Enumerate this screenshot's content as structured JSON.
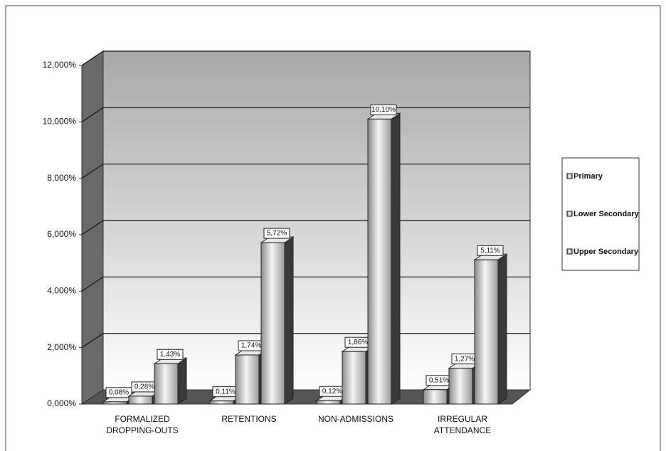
{
  "chart_data": {
    "type": "bar3d",
    "categories": [
      "FORMALIZED DROPPING-OUTS",
      "RETENTIONS",
      "NON-ADMISSIONS",
      "IRREGULAR ATTENDANCE"
    ],
    "series": [
      {
        "name": "Primary",
        "values": [
          0.08,
          0.11,
          0.12,
          0.51
        ],
        "value_labels": [
          "0,08%",
          "0,11%",
          "0,12%",
          "0,51%"
        ]
      },
      {
        "name": "Lower Secondary",
        "values": [
          0.28,
          1.74,
          1.86,
          1.27
        ],
        "value_labels": [
          "0,28%",
          "1,74%",
          "1,86%",
          "1,27%"
        ]
      },
      {
        "name": "Upper Secondary",
        "values": [
          1.43,
          5.72,
          10.1,
          5.11
        ],
        "value_labels": [
          "1,43%",
          "5,72%",
          "10,10%",
          "5,11%"
        ]
      }
    ],
    "ylim": [
      0,
      12
    ],
    "yticks": [
      {
        "value": 0,
        "label": "0,000%"
      },
      {
        "value": 2,
        "label": "2,000%"
      },
      {
        "value": 4,
        "label": "4,000%"
      },
      {
        "value": 6,
        "label": "6,000%"
      },
      {
        "value": 8,
        "label": "8,000%"
      },
      {
        "value": 10,
        "label": "10,000%"
      },
      {
        "value": 12,
        "label": "12,000%"
      }
    ],
    "grid": true,
    "legend": "right"
  }
}
